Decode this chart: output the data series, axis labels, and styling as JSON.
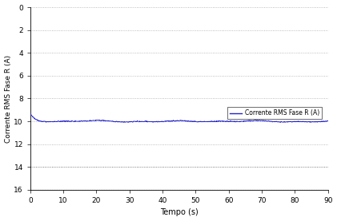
{
  "xlabel": "Tempo (s)",
  "ylabel": "Corrente RMS Fase R (A)",
  "legend_label": "Corrente RMS Fase R (A)",
  "xlim": [
    0,
    90
  ],
  "ylim_top": 16,
  "ylim_bottom": 0,
  "yticks": [
    0,
    2,
    4,
    6,
    8,
    10,
    12,
    14,
    16
  ],
  "xticks": [
    0,
    10,
    20,
    30,
    40,
    50,
    60,
    70,
    80,
    90
  ],
  "line_color": "#2222cc",
  "grid_color_dark": "#555555",
  "grid_color_light": "#aaaaaa",
  "background_color": "#ffffff",
  "figsize": [
    4.21,
    2.77
  ],
  "dpi": 100,
  "signal_mean": 10.0,
  "signal_start": 9.3,
  "signal_noise": 0.04
}
